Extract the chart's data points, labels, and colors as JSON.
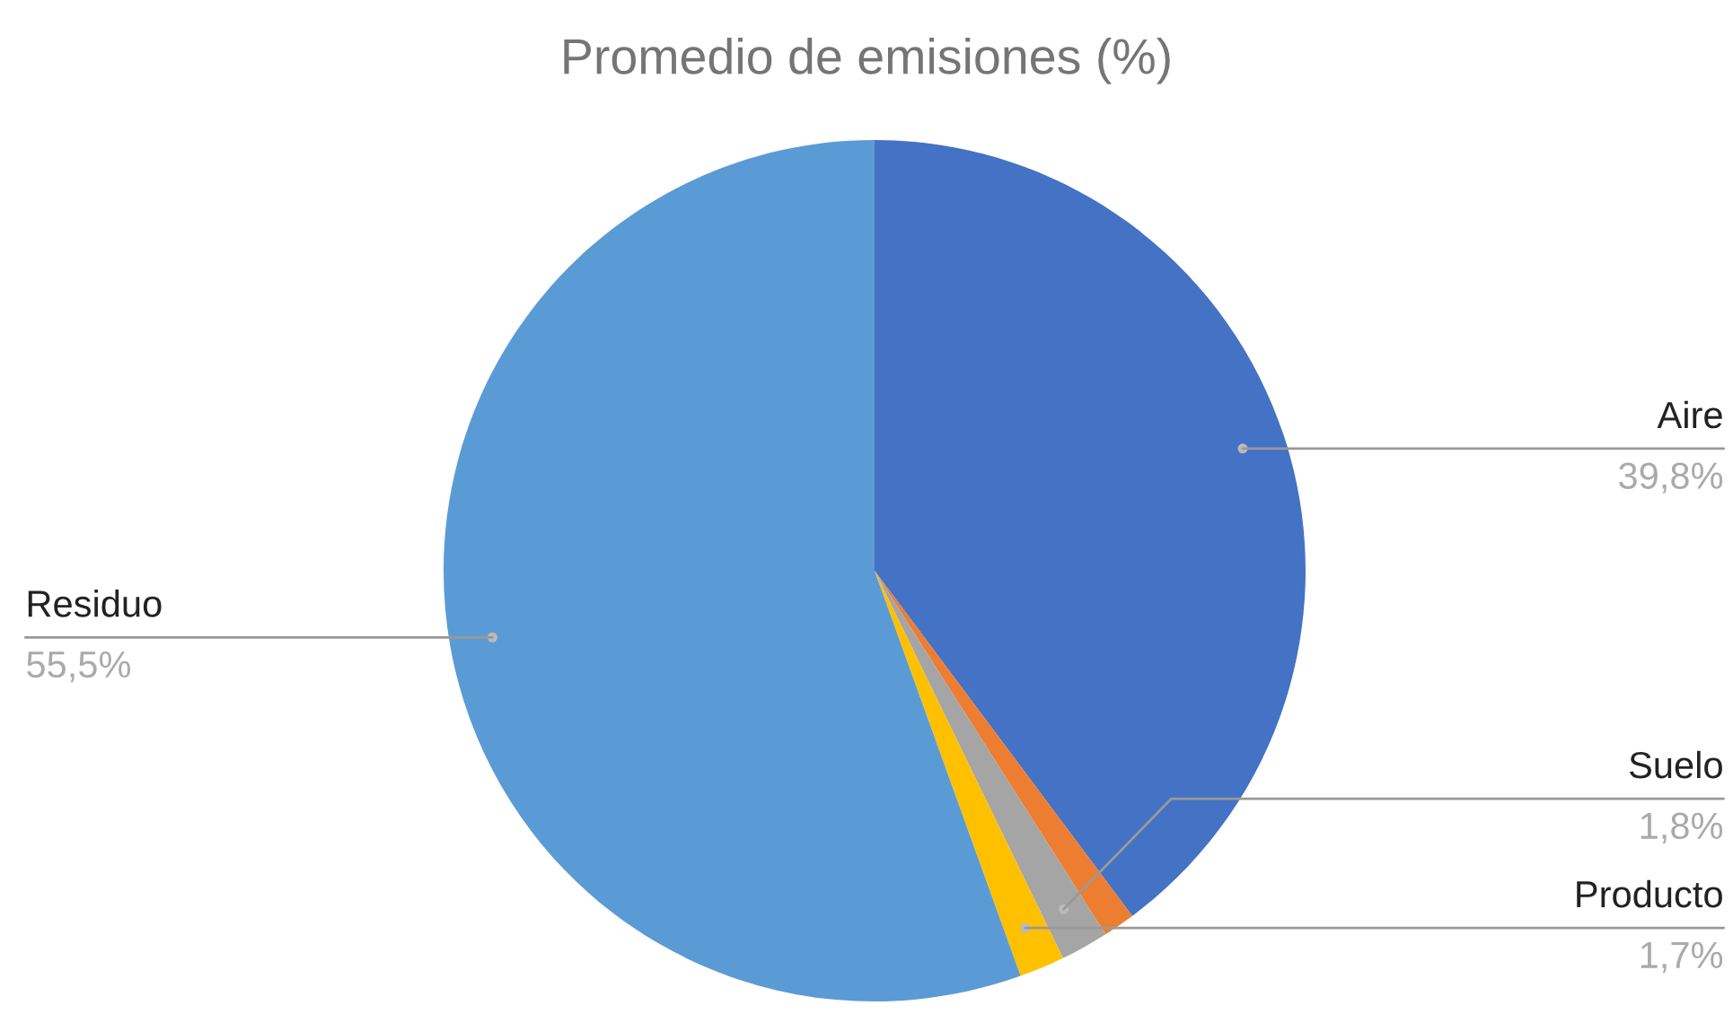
{
  "chart_data": {
    "type": "pie",
    "title": "Promedio de emisiones (%)",
    "categories": [
      "Aire",
      null,
      "Suelo",
      "Producto",
      "Residuo"
    ],
    "values": [
      39.8,
      1.2,
      1.8,
      1.7,
      55.5
    ],
    "colors": [
      "#4472c4",
      "#ed7d31",
      "#a5a5a5",
      "#ffc000",
      "#5b9bd5"
    ],
    "value_labels": [
      "39,8%",
      null,
      "1,8%",
      "1,7%",
      "55,5%"
    ],
    "legend": false
  }
}
